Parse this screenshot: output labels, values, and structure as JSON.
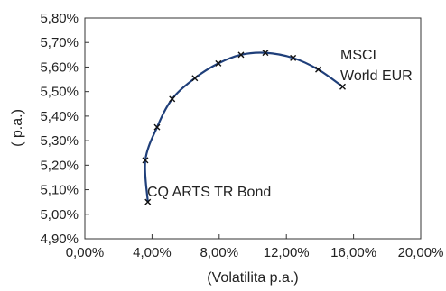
{
  "chart_data": {
    "type": "line",
    "title": "",
    "xlabel": "(Volatilita p.a.)",
    "ylabel": "( p.a.)",
    "xlim": [
      0,
      20
    ],
    "ylim": [
      4.9,
      5.8
    ],
    "x_ticks": [
      0,
      4,
      8,
      12,
      16,
      20
    ],
    "y_ticks": [
      4.9,
      5.0,
      5.1,
      5.2,
      5.3,
      5.4,
      5.5,
      5.6,
      5.7,
      5.8
    ],
    "x_tick_labels": [
      "0,00%",
      "4,00%",
      "8,00%",
      "12,00%",
      "16,00%",
      "20,00%"
    ],
    "y_tick_labels": [
      "4,90%",
      "5,00%",
      "5,10%",
      "5,20%",
      "5,30%",
      "5,40%",
      "5,50%",
      "5,60%",
      "5,70%",
      "5,80%"
    ],
    "grid": false,
    "line_color": "#1f3f7a",
    "marker": "x",
    "series": [
      {
        "x": [
          3.75,
          3.6,
          4.3,
          5.2,
          6.55,
          7.95,
          9.3,
          10.75,
          12.4,
          13.9,
          15.35
        ],
        "y": [
          5.05,
          5.22,
          5.355,
          5.47,
          5.555,
          5.615,
          5.65,
          5.658,
          5.637,
          5.59,
          5.52
        ]
      }
    ],
    "annotations": [
      {
        "id": "bond",
        "lines": [
          "CQ ARTS TR Bond"
        ]
      },
      {
        "id": "msci",
        "lines": [
          "MSCI",
          "World EUR"
        ]
      }
    ]
  }
}
